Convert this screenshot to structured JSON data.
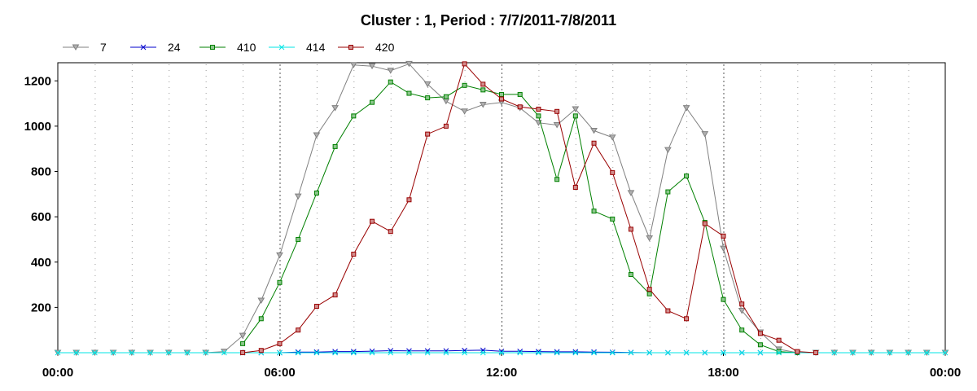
{
  "chart_data": {
    "type": "line",
    "title": "Cluster : 1, Period : 7/7/2011-7/8/2011",
    "xlabel": "",
    "ylabel": "",
    "x_unit": "hours",
    "xlim": [
      0,
      24
    ],
    "ylim": [
      0,
      1280
    ],
    "x_tick_values": [
      0,
      6,
      12,
      18,
      24
    ],
    "x_tick_labels": [
      "00:00",
      "06:00",
      "12:00",
      "18:00",
      "00:00"
    ],
    "y_ticks": [
      200,
      400,
      600,
      800,
      1000,
      1200
    ],
    "grid": true,
    "legend_position": "top-left",
    "x": [
      0,
      0.5,
      1,
      1.5,
      2,
      2.5,
      3,
      3.5,
      4,
      4.5,
      5,
      5.5,
      6,
      6.5,
      7,
      7.5,
      8,
      8.5,
      9,
      9.5,
      10,
      10.5,
      11,
      11.5,
      12,
      12.5,
      13,
      13.5,
      14,
      14.5,
      15,
      15.5,
      16,
      16.5,
      17,
      17.5,
      18,
      18.5,
      19,
      19.5,
      20,
      20.5,
      21,
      21.5,
      22,
      22.5,
      23,
      23.5,
      24
    ],
    "series": [
      {
        "name": "7",
        "color": "#808080",
        "marker": "triangle-down",
        "values": [
          0,
          0,
          0,
          0,
          0,
          0,
          0,
          0,
          0,
          5,
          75,
          230,
          430,
          690,
          960,
          1080,
          1270,
          1265,
          1245,
          1275,
          1185,
          1110,
          1065,
          1095,
          1105,
          1080,
          1015,
          1005,
          1075,
          980,
          950,
          705,
          505,
          895,
          1080,
          965,
          460,
          185,
          90,
          15,
          0,
          0,
          0,
          0,
          0,
          0,
          0,
          0,
          0
        ]
      },
      {
        "name": "24",
        "color": "#0000cc",
        "marker": "x",
        "values": [
          null,
          null,
          null,
          null,
          null,
          null,
          null,
          null,
          null,
          null,
          0,
          0,
          0,
          3,
          3,
          5,
          5,
          7,
          9,
          8,
          8,
          8,
          10,
          11,
          6,
          6,
          5,
          4,
          4,
          3,
          2,
          1,
          0,
          0,
          0,
          0,
          0,
          0,
          0,
          null,
          null,
          null,
          null,
          null,
          null,
          null,
          null,
          null,
          null
        ]
      },
      {
        "name": "410",
        "color": "#008000",
        "marker": "square",
        "values": [
          null,
          null,
          null,
          null,
          null,
          null,
          null,
          null,
          null,
          null,
          40,
          150,
          310,
          500,
          705,
          910,
          1045,
          1105,
          1195,
          1145,
          1125,
          1130,
          1180,
          1160,
          1140,
          1140,
          1045,
          765,
          1045,
          625,
          590,
          345,
          260,
          710,
          780,
          575,
          235,
          100,
          35,
          5,
          0,
          null,
          null,
          null,
          null,
          null,
          null,
          null,
          null
        ]
      },
      {
        "name": "414",
        "color": "#00e5e5",
        "marker": "x",
        "values": [
          0,
          0,
          0,
          0,
          0,
          0,
          0,
          0,
          0,
          0,
          0,
          0,
          0,
          0,
          0,
          0,
          0,
          0,
          0,
          0,
          0,
          0,
          0,
          0,
          0,
          0,
          0,
          0,
          0,
          0,
          0,
          0,
          0,
          0,
          0,
          0,
          0,
          0,
          0,
          0,
          0,
          0,
          0,
          0,
          0,
          0,
          0,
          0,
          0
        ]
      },
      {
        "name": "420",
        "color": "#990000",
        "marker": "square",
        "values": [
          null,
          null,
          null,
          null,
          null,
          null,
          null,
          null,
          null,
          null,
          0,
          10,
          40,
          100,
          205,
          255,
          435,
          580,
          535,
          675,
          965,
          1000,
          1275,
          1185,
          1120,
          1085,
          1075,
          1065,
          730,
          925,
          795,
          545,
          280,
          185,
          150,
          570,
          515,
          215,
          85,
          55,
          5,
          0,
          null,
          null,
          null,
          null,
          null,
          null,
          null
        ]
      }
    ]
  }
}
